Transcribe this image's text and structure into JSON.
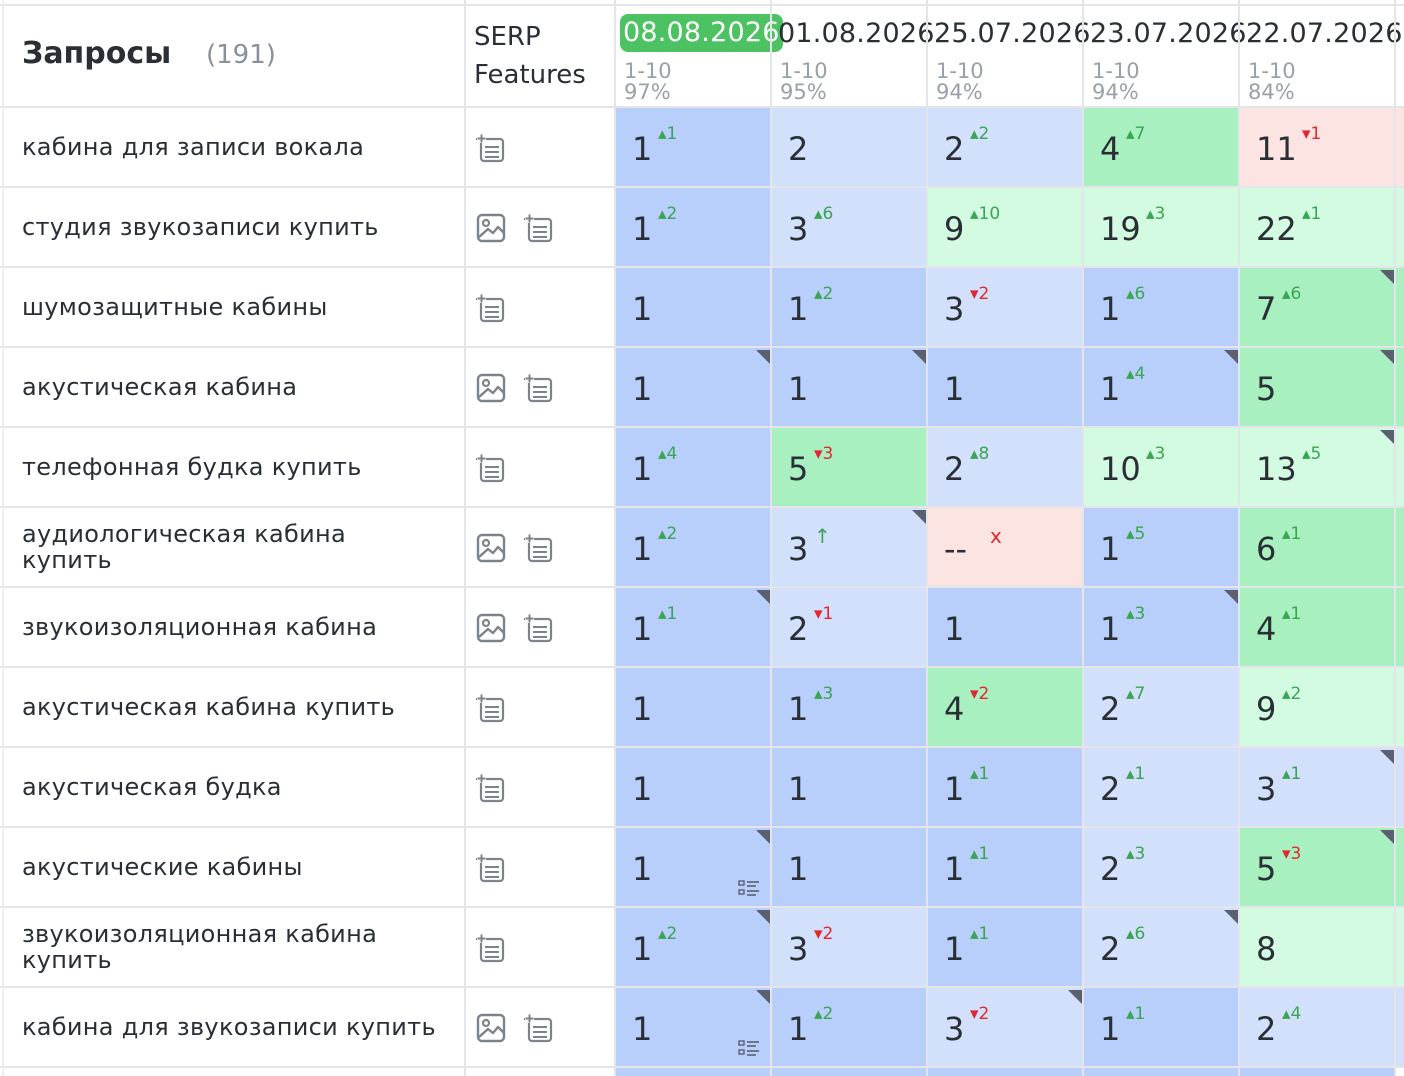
{
  "header": {
    "title": "Запросы",
    "count": "(191)",
    "serp_line1": "SERP",
    "serp_line2": "Features"
  },
  "dates": [
    {
      "date": "08.08.2026",
      "range": "1-10",
      "pct": "97%",
      "active": true
    },
    {
      "date": "01.08.2026",
      "range": "1-10",
      "pct": "95%",
      "active": false
    },
    {
      "date": "25.07.2026",
      "range": "1-10",
      "pct": "94%",
      "active": false
    },
    {
      "date": "23.07.2026",
      "range": "1-10",
      "pct": "94%",
      "active": false
    },
    {
      "date": "22.07.2026",
      "range": "1-10",
      "pct": "84%",
      "active": false
    }
  ],
  "colors": {
    "dark_blue": "#b7cffa",
    "light_blue": "#d2e0fc",
    "green": "#a8f0c0",
    "light_green": "#d2fbe2",
    "pink": "#fbe4e1",
    "grid": "#e3e5e8",
    "up": "#3aa552",
    "down": "#e0282e"
  },
  "rows": [
    {
      "query": "кабина для записи вокала",
      "features": [
        "list-icon"
      ],
      "cells": [
        {
          "pos": "1",
          "chg": "1",
          "dir": "up",
          "bg": "dark_blue"
        },
        {
          "pos": "2",
          "chg": "",
          "dir": "",
          "bg": "light_blue"
        },
        {
          "pos": "2",
          "chg": "2",
          "dir": "up",
          "bg": "light_blue"
        },
        {
          "pos": "4",
          "chg": "7",
          "dir": "up",
          "bg": "green"
        },
        {
          "pos": "11",
          "chg": "1",
          "dir": "down",
          "bg": "pink"
        }
      ]
    },
    {
      "query": "студия звукозаписи купить",
      "features": [
        "image-icon",
        "list-icon"
      ],
      "cells": [
        {
          "pos": "1",
          "chg": "2",
          "dir": "up",
          "bg": "dark_blue"
        },
        {
          "pos": "3",
          "chg": "6",
          "dir": "up",
          "bg": "light_blue"
        },
        {
          "pos": "9",
          "chg": "10",
          "dir": "up",
          "bg": "light_green"
        },
        {
          "pos": "19",
          "chg": "3",
          "dir": "up",
          "bg": "light_green"
        },
        {
          "pos": "22",
          "chg": "1",
          "dir": "up",
          "bg": "light_green"
        }
      ]
    },
    {
      "query": "шумозащитные кабины",
      "features": [
        "list-icon"
      ],
      "cells": [
        {
          "pos": "1",
          "chg": "",
          "dir": "",
          "bg": "dark_blue"
        },
        {
          "pos": "1",
          "chg": "2",
          "dir": "up",
          "bg": "dark_blue"
        },
        {
          "pos": "3",
          "chg": "2",
          "dir": "down",
          "bg": "light_blue"
        },
        {
          "pos": "1",
          "chg": "6",
          "dir": "up",
          "bg": "dark_blue"
        },
        {
          "pos": "7",
          "chg": "6",
          "dir": "up",
          "bg": "green",
          "corner": true
        }
      ]
    },
    {
      "query": "акустическая кабина",
      "features": [
        "image-icon",
        "list-icon"
      ],
      "cells": [
        {
          "pos": "1",
          "chg": "",
          "dir": "",
          "bg": "dark_blue",
          "corner": true
        },
        {
          "pos": "1",
          "chg": "",
          "dir": "",
          "bg": "dark_blue",
          "corner": true
        },
        {
          "pos": "1",
          "chg": "",
          "dir": "",
          "bg": "dark_blue"
        },
        {
          "pos": "1",
          "chg": "4",
          "dir": "up",
          "bg": "dark_blue",
          "corner": true
        },
        {
          "pos": "5",
          "chg": "",
          "dir": "",
          "bg": "green",
          "corner": true
        }
      ]
    },
    {
      "query": "телефонная будка купить",
      "features": [
        "list-icon"
      ],
      "cells": [
        {
          "pos": "1",
          "chg": "4",
          "dir": "up",
          "bg": "dark_blue"
        },
        {
          "pos": "5",
          "chg": "3",
          "dir": "down",
          "bg": "green"
        },
        {
          "pos": "2",
          "chg": "8",
          "dir": "up",
          "bg": "light_blue"
        },
        {
          "pos": "10",
          "chg": "3",
          "dir": "up",
          "bg": "light_green"
        },
        {
          "pos": "13",
          "chg": "5",
          "dir": "up",
          "bg": "light_green",
          "corner": true
        }
      ]
    },
    {
      "query": "аудиологическая кабина купить",
      "features": [
        "image-icon",
        "list-icon"
      ],
      "cells": [
        {
          "pos": "1",
          "chg": "2",
          "dir": "up",
          "bg": "dark_blue"
        },
        {
          "pos": "3",
          "chg": "↑",
          "dir": "up",
          "bg": "light_blue",
          "corner": true
        },
        {
          "pos": "--",
          "chg": "x",
          "dir": "down",
          "bg": "pink"
        },
        {
          "pos": "1",
          "chg": "5",
          "dir": "up",
          "bg": "dark_blue"
        },
        {
          "pos": "6",
          "chg": "1",
          "dir": "up",
          "bg": "green"
        }
      ]
    },
    {
      "query": "звукоизоляционная кабина",
      "features": [
        "image-icon",
        "list-icon"
      ],
      "cells": [
        {
          "pos": "1",
          "chg": "1",
          "dir": "up",
          "bg": "dark_blue",
          "corner": true
        },
        {
          "pos": "2",
          "chg": "1",
          "dir": "down",
          "bg": "light_blue"
        },
        {
          "pos": "1",
          "chg": "",
          "dir": "",
          "bg": "dark_blue"
        },
        {
          "pos": "1",
          "chg": "3",
          "dir": "up",
          "bg": "dark_blue",
          "corner": true
        },
        {
          "pos": "4",
          "chg": "1",
          "dir": "up",
          "bg": "green"
        }
      ]
    },
    {
      "query": "акустическая кабина купить",
      "features": [
        "list-icon"
      ],
      "cells": [
        {
          "pos": "1",
          "chg": "",
          "dir": "",
          "bg": "dark_blue"
        },
        {
          "pos": "1",
          "chg": "3",
          "dir": "up",
          "bg": "dark_blue"
        },
        {
          "pos": "4",
          "chg": "2",
          "dir": "down",
          "bg": "green"
        },
        {
          "pos": "2",
          "chg": "7",
          "dir": "up",
          "bg": "light_blue"
        },
        {
          "pos": "9",
          "chg": "2",
          "dir": "up",
          "bg": "light_green"
        }
      ]
    },
    {
      "query": "акустическая будка",
      "features": [
        "list-icon"
      ],
      "cells": [
        {
          "pos": "1",
          "chg": "",
          "dir": "",
          "bg": "dark_blue"
        },
        {
          "pos": "1",
          "chg": "",
          "dir": "",
          "bg": "dark_blue"
        },
        {
          "pos": "1",
          "chg": "1",
          "dir": "up",
          "bg": "dark_blue"
        },
        {
          "pos": "2",
          "chg": "1",
          "dir": "up",
          "bg": "light_blue"
        },
        {
          "pos": "3",
          "chg": "1",
          "dir": "up",
          "bg": "light_blue",
          "corner": true
        }
      ]
    },
    {
      "query": "акустические кабины",
      "features": [
        "list-icon"
      ],
      "cells": [
        {
          "pos": "1",
          "chg": "",
          "dir": "",
          "bg": "dark_blue",
          "corner": true,
          "mini": true
        },
        {
          "pos": "1",
          "chg": "",
          "dir": "",
          "bg": "dark_blue"
        },
        {
          "pos": "1",
          "chg": "1",
          "dir": "up",
          "bg": "dark_blue"
        },
        {
          "pos": "2",
          "chg": "3",
          "dir": "up",
          "bg": "light_blue"
        },
        {
          "pos": "5",
          "chg": "3",
          "dir": "down",
          "bg": "green",
          "corner": true
        }
      ]
    },
    {
      "query": "звукоизоляционная кабина купить",
      "features": [
        "list-icon"
      ],
      "cells": [
        {
          "pos": "1",
          "chg": "2",
          "dir": "up",
          "bg": "dark_blue",
          "corner": true
        },
        {
          "pos": "3",
          "chg": "2",
          "dir": "down",
          "bg": "light_blue"
        },
        {
          "pos": "1",
          "chg": "1",
          "dir": "up",
          "bg": "dark_blue"
        },
        {
          "pos": "2",
          "chg": "6",
          "dir": "up",
          "bg": "light_blue",
          "corner": true
        },
        {
          "pos": "8",
          "chg": "",
          "dir": "",
          "bg": "light_green"
        }
      ]
    },
    {
      "query": "кабина для звукозаписи купить",
      "features": [
        "image-icon",
        "list-icon"
      ],
      "cells": [
        {
          "pos": "1",
          "chg": "",
          "dir": "",
          "bg": "dark_blue",
          "corner": true,
          "mini": true
        },
        {
          "pos": "1",
          "chg": "2",
          "dir": "up",
          "bg": "dark_blue"
        },
        {
          "pos": "3",
          "chg": "2",
          "dir": "down",
          "bg": "light_blue",
          "corner": true
        },
        {
          "pos": "1",
          "chg": "1",
          "dir": "up",
          "bg": "dark_blue"
        },
        {
          "pos": "2",
          "chg": "4",
          "dir": "up",
          "bg": "light_blue"
        }
      ]
    }
  ]
}
